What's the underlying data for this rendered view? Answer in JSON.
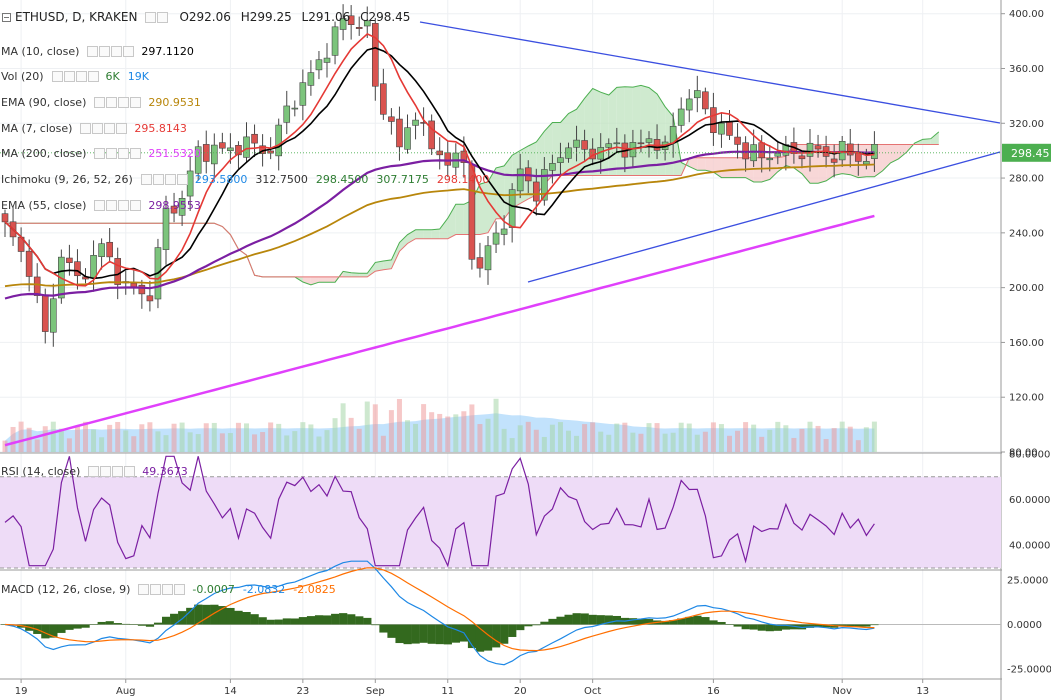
{
  "header": {
    "symbol": "ETHUSD, D, KRAKEN",
    "open": "O292.06",
    "high": "H299.25",
    "low": "L291.06",
    "close": "C298.45"
  },
  "indicators": [
    {
      "name": "MA (10, close)",
      "values": [
        "297.1120"
      ],
      "colors": [
        "#000000"
      ]
    },
    {
      "name": "Vol (20)",
      "values": [
        "6K",
        "19K"
      ],
      "colors": [
        "#2e7d32",
        "#1e88e5"
      ]
    },
    {
      "name": "EMA (90, close)",
      "values": [
        "290.9531"
      ],
      "colors": [
        "#b8860b"
      ]
    },
    {
      "name": "MA (7, close)",
      "values": [
        "295.8143"
      ],
      "colors": [
        "#e53935"
      ]
    },
    {
      "name": "MA (200, close)",
      "values": [
        "251.5320"
      ],
      "colors": [
        "#e040fb"
      ]
    },
    {
      "name": "Ichimoku (9, 26, 52, 26)",
      "values": [
        "293.5800",
        "312.7500",
        "298.4500",
        "307.7175",
        "298.1400"
      ],
      "colors": [
        "#1e88e5",
        "#333333",
        "#2e7d32",
        "#2e7d32",
        "#e53935"
      ]
    },
    {
      "name": "EMA (55, close)",
      "values": [
        "298.9553"
      ],
      "colors": [
        "#7b1fa2"
      ]
    }
  ],
  "rsi_panel": {
    "name": "RSI (14, close)",
    "value": "49.3673",
    "value_color": "#7b1fa2"
  },
  "macd_panel": {
    "name": "MACD (12, 26, close, 9)",
    "values": [
      "-0.0007",
      "-2.0832",
      "-2.0825"
    ],
    "colors": [
      "#2e7d32",
      "#1e88e5",
      "#ff6f00"
    ]
  },
  "colors": {
    "up": "#7cc47c",
    "down": "#d9534f",
    "ma10": "#000000",
    "ma7": "#e53935",
    "ema55": "#7b1fa2",
    "ema90": "#b8860b",
    "ma200": "#e040fb",
    "trendline": "#3b4fe0",
    "cloud_green": "#bfe3bf",
    "cloud_red": "#f6c9c9",
    "volume": "#90caf9",
    "rsi": "#7b1fa2",
    "rsi_band": "#eedcf7",
    "macd_line": "#1e88e5",
    "signal_line": "#ff6f00",
    "hist": "#33691e"
  },
  "chart_data": [
    {
      "type": "candlestick",
      "title": "ETHUSD, D, KRAKEN",
      "ylim": [
        80,
        410
      ],
      "yticks": [
        80,
        120,
        160,
        200,
        240,
        280,
        320,
        360,
        400
      ],
      "ytick_labels": [
        "80.00",
        "120.00",
        "160.00",
        "200.00",
        "240.00",
        "280.00",
        "320.00",
        "360.00",
        "400.00"
      ],
      "last_price_label": "298.45",
      "xtick_labels": [
        "19",
        "Aug",
        "14",
        "23",
        "Sep",
        "11",
        "20",
        "Oct",
        "16",
        "Nov",
        "13"
      ],
      "xtick_days": [
        2,
        15,
        28,
        37,
        46,
        55,
        64,
        73,
        88,
        104,
        114
      ],
      "start_date": "2017-07-17",
      "close_anchors": [
        [
          0,
          245
        ],
        [
          3,
          215
        ],
        [
          5,
          165
        ],
        [
          7,
          225
        ],
        [
          9,
          205
        ],
        [
          12,
          230
        ],
        [
          15,
          200
        ],
        [
          18,
          195
        ],
        [
          20,
          255
        ],
        [
          22,
          265
        ],
        [
          24,
          300
        ],
        [
          27,
          300
        ],
        [
          30,
          305
        ],
        [
          33,
          300
        ],
        [
          35,
          330
        ],
        [
          38,
          355
        ],
        [
          40,
          375
        ],
        [
          42,
          395
        ],
        [
          44,
          393
        ],
        [
          45,
          390
        ],
        [
          46,
          345
        ],
        [
          48,
          320
        ],
        [
          49,
          300
        ],
        [
          51,
          330
        ],
        [
          53,
          300
        ],
        [
          55,
          295
        ],
        [
          57,
          290
        ],
        [
          58,
          225
        ],
        [
          59,
          215
        ],
        [
          62,
          250
        ],
        [
          64,
          285
        ],
        [
          66,
          270
        ],
        [
          68,
          290
        ],
        [
          70,
          305
        ],
        [
          72,
          300
        ],
        [
          74,
          300
        ],
        [
          76,
          305
        ],
        [
          78,
          300
        ],
        [
          80,
          310
        ],
        [
          82,
          300
        ],
        [
          84,
          335
        ],
        [
          86,
          340
        ],
        [
          88,
          320
        ],
        [
          90,
          310
        ],
        [
          92,
          300
        ],
        [
          94,
          295
        ],
        [
          96,
          300
        ],
        [
          98,
          298
        ],
        [
          100,
          302
        ],
        [
          102,
          296
        ],
        [
          104,
          300
        ],
        [
          106,
          294
        ],
        [
          108,
          298
        ]
      ],
      "volume_ylim": [
        0,
        100
      ],
      "volume": {
        "n": 109
      }
    },
    {
      "type": "line",
      "name": "RSI (14, close)",
      "ylim": [
        30,
        80
      ],
      "yticks": [
        40,
        60,
        80
      ],
      "ytick_labels": [
        "40.0000",
        "60.0000",
        "80.0000"
      ],
      "band": [
        30,
        70
      ],
      "last_value": 49.3673
    },
    {
      "type": "line",
      "name": "MACD (12, 26, close, 9)",
      "ylim": [
        -30,
        30
      ],
      "yticks": [
        -25,
        0,
        25
      ],
      "ytick_labels": [
        "-25.0000",
        "0.0000",
        "25.0000"
      ]
    }
  ]
}
